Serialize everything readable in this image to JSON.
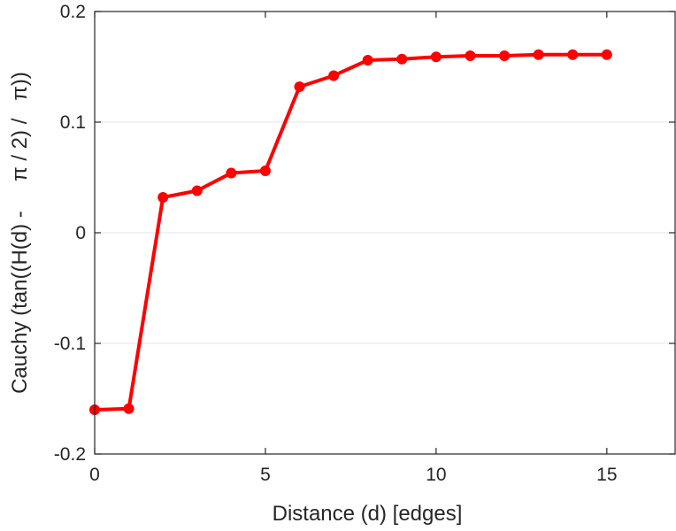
{
  "chart_data": {
    "type": "line",
    "title": "",
    "xlabel": "Distance (d) [edges]",
    "ylabel": "Cauchy (tan((H(d) -     π / 2) /   π))",
    "xlim": [
      0,
      17
    ],
    "ylim": [
      -0.2,
      0.2
    ],
    "xticks": [
      0,
      5,
      10,
      15
    ],
    "xtick_labels": [
      "0",
      "5",
      "10",
      "15"
    ],
    "yticks": [
      -0.2,
      -0.1,
      0,
      0.1,
      0.2
    ],
    "ytick_labels": [
      "-0.2",
      "-0.1",
      "0",
      "0.1",
      "0.2"
    ],
    "grid": "horizontal",
    "series": [
      {
        "color": "#ff0000",
        "marker": "circle",
        "x": [
          0,
          1,
          2,
          3,
          4,
          5,
          6,
          7,
          8,
          9,
          10,
          11,
          12,
          13,
          14,
          15
        ],
        "y": [
          -0.16,
          -0.159,
          0.032,
          0.038,
          0.054,
          0.056,
          0.132,
          0.142,
          0.156,
          0.157,
          0.159,
          0.16,
          0.16,
          0.161,
          0.161,
          0.161
        ]
      }
    ]
  }
}
